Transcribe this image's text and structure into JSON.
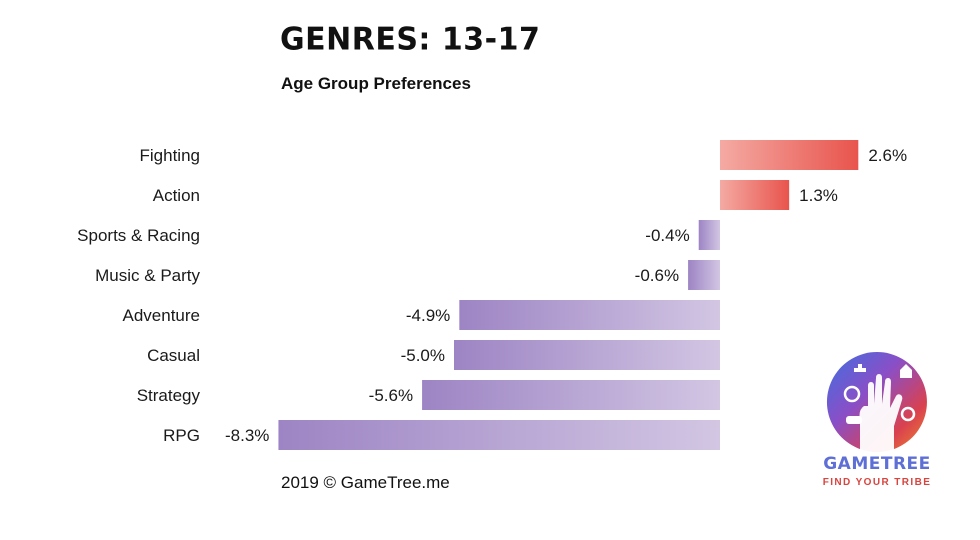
{
  "title": "GENRES: 13-17",
  "subtitle": "Age Group Preferences",
  "footer": "2019 © GameTree.me",
  "logo": {
    "name": "GAMETREE",
    "tagline": "FIND YOUR TRIBE",
    "icon": "gametree-hand-icon"
  },
  "colors": {
    "positive_start": "#f4aaa3",
    "positive_end": "#e8544d",
    "negative_start": "#9d84c4",
    "negative_end": "#d2c6e3"
  },
  "chart_data": {
    "type": "bar",
    "orientation": "horizontal",
    "categories": [
      "Fighting",
      "Action",
      "Sports & Racing",
      "Music & Party",
      "Adventure",
      "Casual",
      "Strategy",
      "RPG"
    ],
    "values": [
      2.6,
      1.3,
      -0.4,
      -0.6,
      -4.9,
      -5.0,
      -5.6,
      -8.3
    ],
    "data_labels": [
      "2.6%",
      "1.3%",
      "-0.4%",
      "-0.6%",
      "-4.9%",
      "-5.0%",
      "-5.6%",
      "-8.3%"
    ],
    "xlim": [
      -8.3,
      2.6
    ],
    "grid": false,
    "legend": "none"
  }
}
